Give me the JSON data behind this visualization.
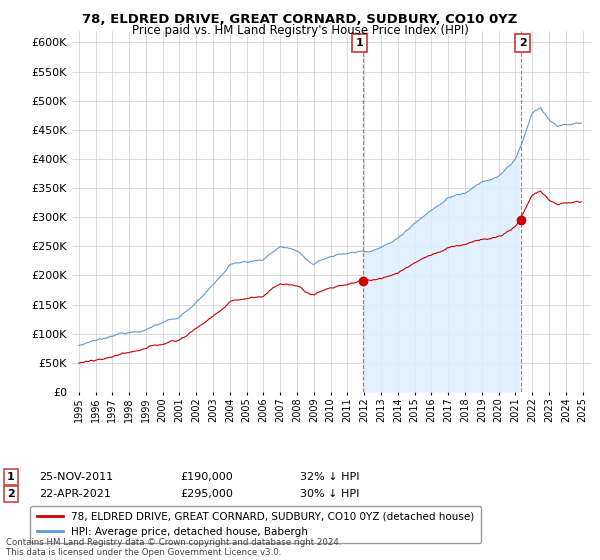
{
  "title": "78, ELDRED DRIVE, GREAT CORNARD, SUDBURY, CO10 0YZ",
  "subtitle": "Price paid vs. HM Land Registry's House Price Index (HPI)",
  "legend_red": "78, ELDRED DRIVE, GREAT CORNARD, SUDBURY, CO10 0YZ (detached house)",
  "legend_blue": "HPI: Average price, detached house, Babergh",
  "annotation1_date": "25-NOV-2011",
  "annotation1_price": "£190,000",
  "annotation1_pct": "32% ↓ HPI",
  "annotation2_date": "22-APR-2021",
  "annotation2_price": "£295,000",
  "annotation2_pct": "30% ↓ HPI",
  "copyright": "Contains HM Land Registry data © Crown copyright and database right 2024.\nThis data is licensed under the Open Government Licence v3.0.",
  "sale1_year": 2011.92,
  "sale1_price": 190000,
  "sale2_year": 2021.33,
  "sale2_price": 295000,
  "ylim_max": 620000,
  "red_color": "#cc0000",
  "blue_color": "#5b9bd5",
  "blue_fill_color": "#ddeeff"
}
